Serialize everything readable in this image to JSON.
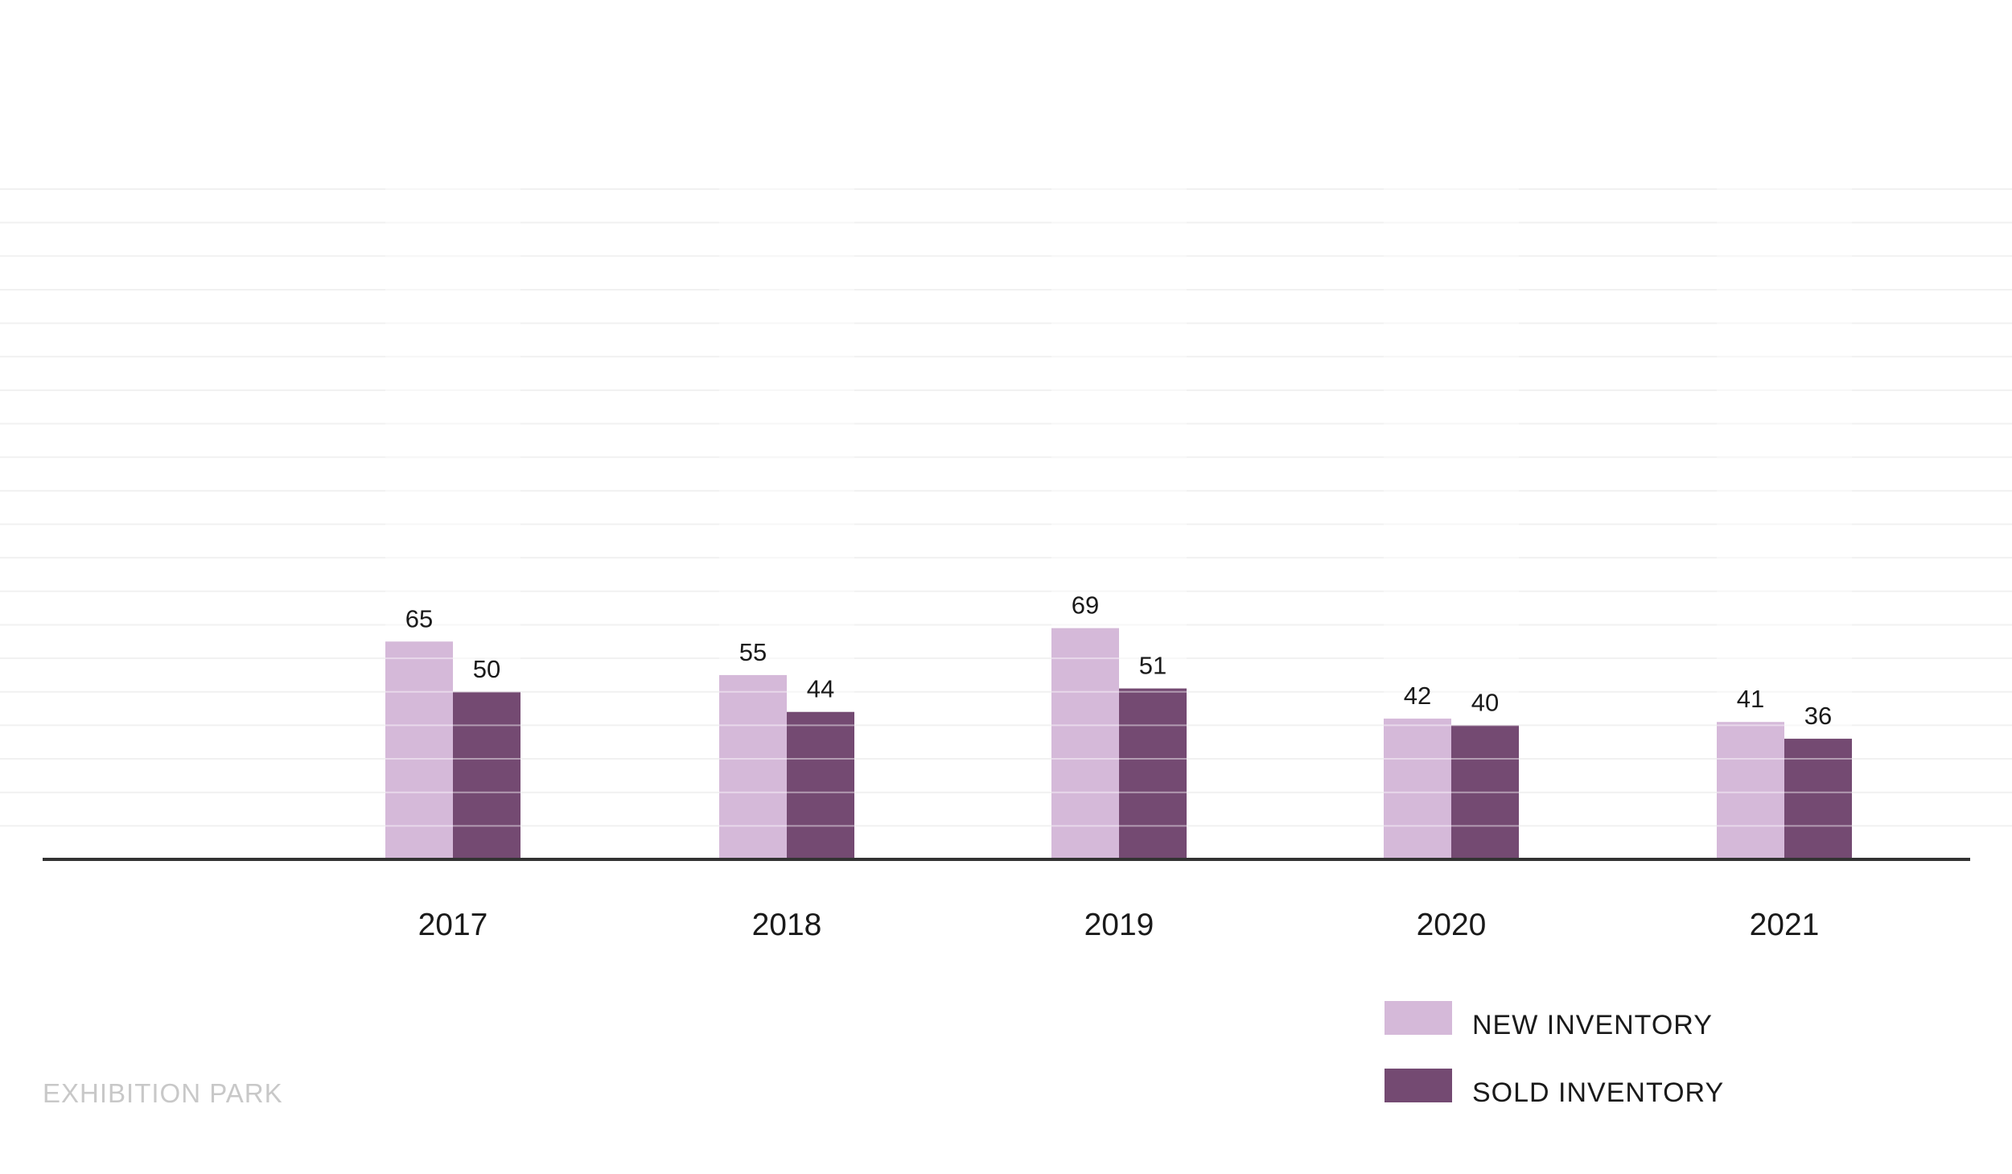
{
  "chart_data": {
    "type": "bar",
    "categories": [
      "2017",
      "2018",
      "2019",
      "2020",
      "2021"
    ],
    "series": [
      {
        "name": "NEW INVENTORY",
        "values": [
          65,
          55,
          69,
          42,
          41
        ],
        "color": "#d5b9d9"
      },
      {
        "name": "SOLD INVENTORY",
        "values": [
          50,
          44,
          51,
          40,
          36
        ],
        "color": "#744a72"
      }
    ],
    "ylim": [
      0,
      200
    ],
    "grid": true,
    "grid_step": 10,
    "legend_position": "bottom-right",
    "data_labels": true
  },
  "footer": {
    "label": "EXHIBITION PARK"
  },
  "colors": {
    "axis": "#333333",
    "grid": "#f1f1f1",
    "footer_text": "#c8c8c8"
  }
}
